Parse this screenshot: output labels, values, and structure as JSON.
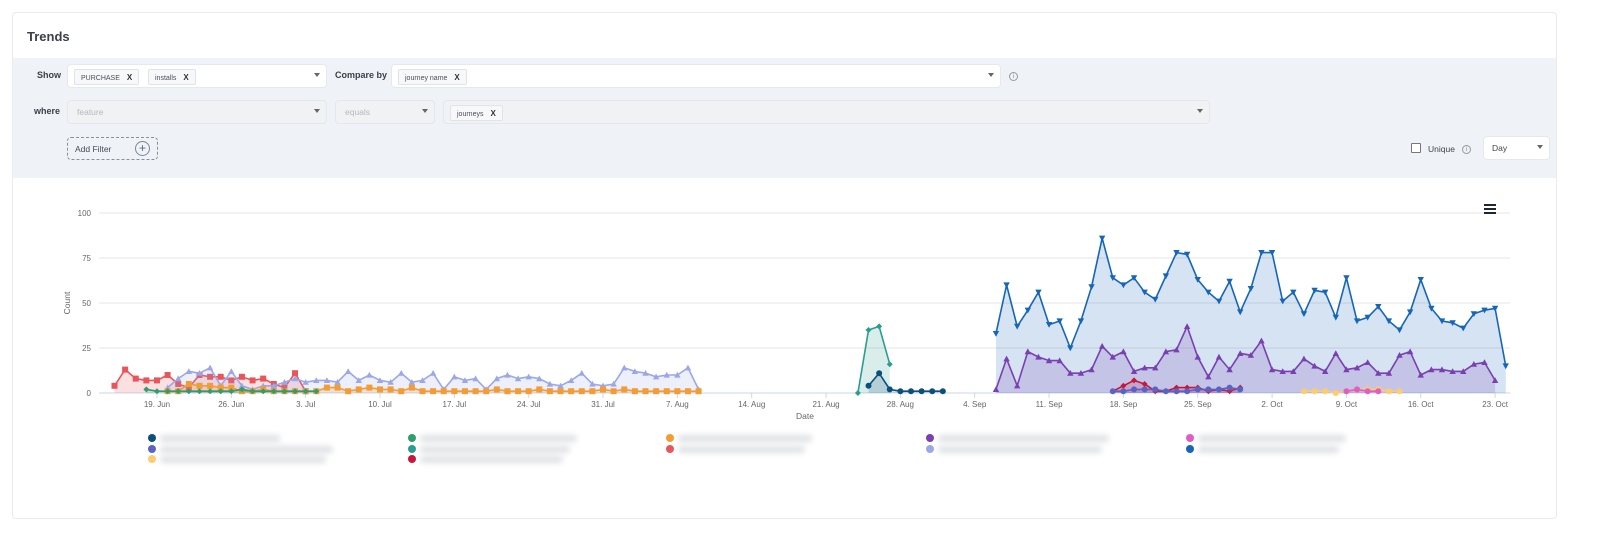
{
  "card": {
    "title": "Trends"
  },
  "filters": {
    "show_label": "Show",
    "show_chips": [
      {
        "label": "PURCHASE",
        "remove": "X"
      },
      {
        "label": "installs",
        "remove": "X"
      }
    ],
    "compare_label": "Compare by",
    "compare_chips": [
      {
        "label": "journey name",
        "remove": "X"
      }
    ],
    "where_label": "where",
    "where_property_placeholder": "feature",
    "where_operator_placeholder": "equals",
    "where_value_chips": [
      {
        "label": "journeys",
        "remove": "X"
      }
    ],
    "add_filter_label": "Add Filter",
    "add_filter_icon": "+",
    "unique_label": "Unique",
    "unique_checked": false,
    "interval_value": "Day",
    "info_icon": "i"
  },
  "chart_data": {
    "type": "area",
    "title": "",
    "xlabel": "Date",
    "ylabel": "Count",
    "ylim": [
      0,
      100
    ],
    "yticks": [
      0,
      25,
      50,
      75,
      100
    ],
    "xticks": [
      "19. Jun",
      "26. Jun",
      "3. Jul",
      "10. Jul",
      "17. Jul",
      "24. Jul",
      "31. Jul",
      "7. Aug",
      "14. Aug",
      "21. Aug",
      "28. Aug",
      "4. Sep",
      "11. Sep",
      "18. Sep",
      "25. Sep",
      "2. Oct",
      "9. Oct",
      "16. Oct",
      "23. Oct"
    ],
    "grid": true,
    "legend_position": "bottom",
    "x_start_date": "15. Jun",
    "x_unit": "day index from 15. Jun",
    "series": [
      {
        "name": "series-red-square",
        "color": "#e8555a",
        "marker": "square",
        "start": 0,
        "values": [
          4,
          13,
          8,
          7,
          7,
          10,
          5,
          3,
          10,
          9,
          9,
          7,
          9,
          7,
          8,
          5,
          3,
          11,
          1
        ]
      },
      {
        "name": "series-lavender-triangle",
        "color": "#9ca7e8",
        "marker": "triangle",
        "start": 5,
        "values": [
          3,
          8,
          12,
          11,
          14,
          4,
          12,
          4,
          2,
          4,
          4,
          6,
          8,
          6,
          7,
          7,
          6,
          12,
          7,
          10,
          7,
          6,
          11,
          6,
          7,
          11,
          2,
          9,
          7,
          8,
          2,
          8,
          10,
          8,
          9,
          8,
          5,
          4,
          7,
          11,
          5,
          4,
          5,
          14,
          12,
          11,
          9,
          10,
          10,
          14,
          2
        ]
      },
      {
        "name": "series-orange-square",
        "color": "#f39c33",
        "marker": "square",
        "start": 5,
        "values": [
          1,
          1,
          5,
          4,
          4,
          3,
          3,
          1,
          1,
          2,
          1,
          1,
          1,
          1,
          1,
          3,
          3,
          1,
          2,
          3,
          2,
          2,
          1,
          3,
          1,
          1,
          1,
          1,
          1,
          1,
          1,
          2,
          1,
          1,
          1,
          2,
          1,
          1,
          1,
          1,
          1,
          2,
          1,
          2,
          1,
          1,
          1,
          1,
          1,
          1,
          1
        ]
      },
      {
        "name": "series-green-diamond",
        "color": "#2e9e6e",
        "marker": "diamond",
        "start": 3,
        "values": [
          2,
          1,
          1,
          1,
          1,
          1,
          1,
          1,
          1,
          2,
          1,
          1,
          1,
          1,
          1,
          1,
          1
        ]
      },
      {
        "name": "series-teal-diamond",
        "color": "#2a9d8f",
        "marker": "diamond",
        "start": 70,
        "values": [
          0,
          35,
          37,
          16
        ]
      },
      {
        "name": "series-navy-circle",
        "color": "#0b4f7c",
        "marker": "circle",
        "start": 71,
        "values": [
          4,
          11,
          2,
          1,
          1,
          1,
          1,
          1
        ]
      },
      {
        "name": "series-blue-down-triangle",
        "color": "#1565b8",
        "marker": "triangle-down",
        "start": 83,
        "values": [
          33,
          60,
          37,
          46,
          56,
          38,
          40,
          25,
          40,
          59,
          86,
          64,
          60,
          64,
          56,
          52,
          65,
          78,
          77,
          63,
          56,
          51,
          62,
          45,
          58,
          78,
          78,
          51,
          56,
          44,
          57,
          56,
          42,
          64,
          40,
          42,
          48,
          40,
          35,
          45,
          63,
          47,
          40,
          39,
          36,
          44,
          46,
          47,
          15
        ]
      },
      {
        "name": "series-purple-triangle",
        "color": "#7a3fb0",
        "marker": "triangle",
        "start": 83,
        "values": [
          2,
          19,
          4,
          23,
          20,
          18,
          18,
          11,
          11,
          13,
          26,
          20,
          23,
          12,
          14,
          14,
          23,
          24,
          37,
          20,
          9,
          20,
          13,
          22,
          21,
          29,
          13,
          12,
          12,
          19,
          15,
          12,
          22,
          13,
          14,
          17,
          11,
          11,
          21,
          23,
          10,
          13,
          13,
          12,
          12,
          16,
          17,
          7
        ]
      },
      {
        "name": "series-crimson-diamond",
        "color": "#c8163c",
        "marker": "diamond",
        "start": 94,
        "values": [
          1,
          4,
          7,
          5,
          1,
          1,
          3,
          3,
          3,
          1,
          2,
          1,
          3
        ]
      },
      {
        "name": "series-indigo-circle",
        "color": "#5a63c4",
        "marker": "circle",
        "start": 94,
        "values": [
          1,
          1,
          2,
          2,
          2,
          1,
          1,
          1,
          2,
          2,
          2,
          3,
          2
        ]
      },
      {
        "name": "series-gold-circle",
        "color": "#fdcc6c",
        "marker": "circle",
        "start": 112,
        "values": [
          1,
          1,
          1,
          0,
          1,
          2,
          2,
          2,
          1,
          1
        ]
      },
      {
        "name": "series-pink-circle",
        "color": "#e05ec0",
        "marker": "circle",
        "start": 116,
        "values": [
          1,
          2,
          1,
          1
        ]
      }
    ]
  },
  "legend": {
    "columns": [
      {
        "items": [
          {
            "color": "#0b4f7c"
          },
          {
            "color": "#5a63c4"
          },
          {
            "color": "#fdcc6c"
          }
        ]
      },
      {
        "items": [
          {
            "color": "#2e9e6e"
          },
          {
            "color": "#2a9d8f"
          },
          {
            "color": "#c8163c"
          }
        ]
      },
      {
        "items": [
          {
            "color": "#f39c33"
          },
          {
            "color": "#e8555a"
          }
        ]
      },
      {
        "items": [
          {
            "color": "#7a3fb0"
          },
          {
            "color": "#9ca7e8"
          }
        ]
      },
      {
        "items": [
          {
            "color": "#e05ec0"
          },
          {
            "color": "#1565b8"
          }
        ]
      }
    ],
    "labels_obscured": true
  },
  "chart_menu": {
    "icon": "hamburger-menu-icon"
  }
}
